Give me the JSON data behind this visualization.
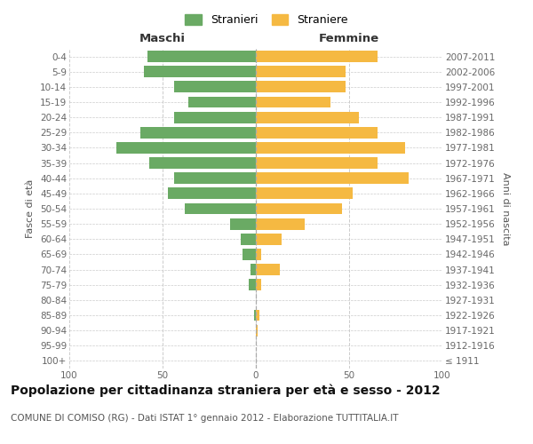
{
  "age_groups": [
    "100+",
    "95-99",
    "90-94",
    "85-89",
    "80-84",
    "75-79",
    "70-74",
    "65-69",
    "60-64",
    "55-59",
    "50-54",
    "45-49",
    "40-44",
    "35-39",
    "30-34",
    "25-29",
    "20-24",
    "15-19",
    "10-14",
    "5-9",
    "0-4"
  ],
  "birth_years": [
    "≤ 1911",
    "1912-1916",
    "1917-1921",
    "1922-1926",
    "1927-1931",
    "1932-1936",
    "1937-1941",
    "1942-1946",
    "1947-1951",
    "1952-1956",
    "1957-1961",
    "1962-1966",
    "1967-1971",
    "1972-1976",
    "1977-1981",
    "1982-1986",
    "1987-1991",
    "1992-1996",
    "1997-2001",
    "2002-2006",
    "2007-2011"
  ],
  "maschi": [
    0,
    0,
    0,
    1,
    0,
    4,
    3,
    7,
    8,
    14,
    38,
    47,
    44,
    57,
    75,
    62,
    44,
    36,
    44,
    60,
    58
  ],
  "femmine": [
    0,
    0,
    1,
    2,
    0,
    3,
    13,
    3,
    14,
    26,
    46,
    52,
    82,
    65,
    80,
    65,
    55,
    40,
    48,
    48,
    65
  ],
  "maschi_color": "#6aaa64",
  "femmine_color": "#f5b942",
  "background_color": "#ffffff",
  "grid_color": "#cccccc",
  "bar_height": 0.75,
  "xlim": 100,
  "title": "Popolazione per cittadinanza straniera per età e sesso - 2012",
  "subtitle": "COMUNE DI COMISO (RG) - Dati ISTAT 1° gennaio 2012 - Elaborazione TUTTITALIA.IT",
  "xlabel_left": "Maschi",
  "xlabel_right": "Femmine",
  "ylabel_left": "Fasce di età",
  "ylabel_right": "Anni di nascita",
  "legend_stranieri": "Stranieri",
  "legend_straniere": "Straniere",
  "title_fontsize": 10,
  "subtitle_fontsize": 7.5,
  "header_fontsize": 9.5,
  "label_fontsize": 8,
  "tick_fontsize": 7.5
}
